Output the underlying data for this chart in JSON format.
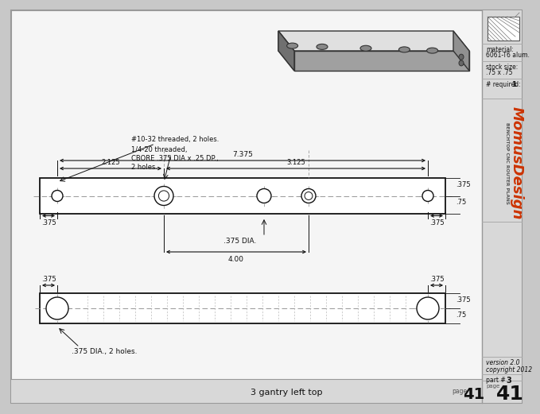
{
  "bg_color": "#c8c8c8",
  "drawing_bg": "#f5f5f5",
  "panel_bg": "#d8d8d8",
  "dim_color": "#111111",
  "red_color": "#cc3300",
  "line_color": "#333333",
  "title": "3 gantry left top",
  "page_num": "41",
  "part_num": "3",
  "version": "version 2.0",
  "copyright": "copyright 2012",
  "material_line1": "material:",
  "material_line2": "6061-T6 alum.",
  "stock_line1": "stock size:",
  "stock_line2": ".75 x .75",
  "required": "# required:",
  "required_val": "1",
  "momus": "MomusDesign",
  "subtitle": "BENCHTOP CNC ROUTER PLANS",
  "annot1": "#10-32 threaded, 2 holes.",
  "annot2": "1/4-20 threaded,",
  "annot3": "CBORE .375 DIA x .25 DP.,",
  "annot4": "2 holes.",
  "dim_375_dia": ".375 DIA.",
  "dim_4": "4.00",
  "dim_7375": "7.375",
  "dim_2125": "2.125",
  "dim_3125": "3.125",
  "dim_375": ".375",
  "dim_75": ".75",
  "dim_375_dia_bot": ".375 DIA., 2 holes."
}
